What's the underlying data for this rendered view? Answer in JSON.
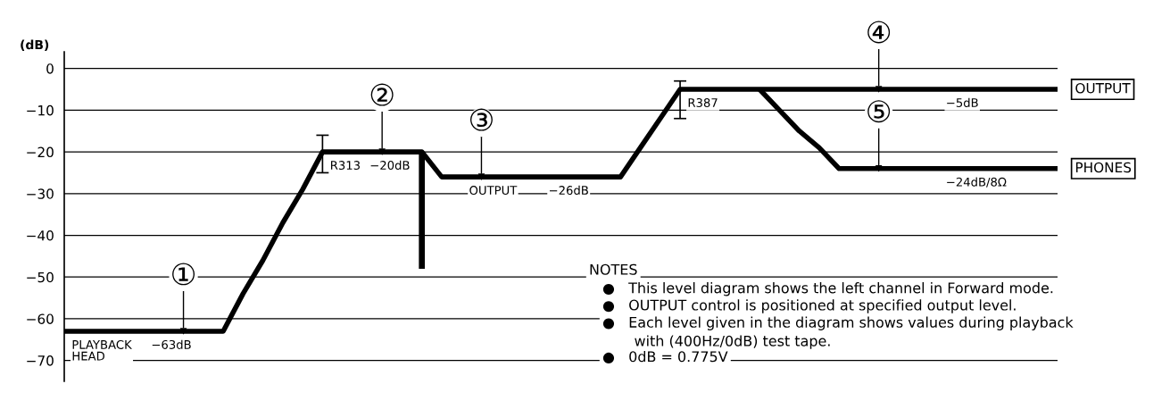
{
  "chart_data": {
    "type": "line",
    "ylabel": "(dB)",
    "ylim": [
      -75,
      4
    ],
    "yticks": [
      0,
      -10,
      -20,
      -30,
      -40,
      -50,
      -60,
      -70
    ],
    "tick_labels": "y",
    "grid": "y",
    "legend": false,
    "marker": "none",
    "line_style": "solid",
    "categories": [
      null,
      null,
      null,
      null,
      null,
      null,
      null,
      null,
      null,
      null,
      null,
      null,
      null,
      null,
      null,
      null,
      null,
      null,
      null,
      null,
      null,
      null,
      null,
      null,
      null,
      null,
      null,
      null,
      null,
      null,
      null,
      null,
      null,
      null,
      null,
      null,
      null,
      null,
      null,
      null,
      null,
      null,
      null,
      null,
      null,
      null,
      null,
      null,
      null,
      null,
      null
    ],
    "series": [
      {
        "name": "OUTPUT",
        "color": "#000000",
        "values": [
          -63,
          -63,
          -63,
          -63,
          -63,
          -63,
          -63,
          -63,
          -63,
          -54,
          -46,
          -37,
          -29,
          -20,
          -20,
          -20,
          -20,
          -20,
          -20,
          -26,
          -26,
          -26,
          -26,
          -26,
          -26,
          -26,
          -26,
          -26,
          -26,
          -19,
          -12,
          -5,
          -5,
          -5,
          -5,
          -5,
          -5,
          -5,
          -5,
          -5,
          -5,
          -5,
          -5,
          -5,
          -5,
          -5,
          -5,
          -5,
          -5,
          -5,
          -5
        ],
        "errors": [
          null,
          null,
          null,
          null,
          null,
          null,
          null,
          null,
          null,
          null,
          null,
          null,
          null,
          [
            -25,
            -16
          ],
          null,
          null,
          null,
          null,
          null,
          null,
          null,
          null,
          null,
          null,
          null,
          null,
          null,
          null,
          null,
          null,
          null,
          [
            -12,
            -3
          ],
          null,
          null,
          null,
          null,
          null,
          null,
          null,
          null,
          null,
          null,
          null,
          null,
          null,
          null,
          null,
          null,
          null,
          null,
          null
        ],
        "value_labels": [
          "PLAYBACK\nHEAD",
          null,
          null,
          null,
          "−63dB",
          null,
          null,
          null,
          null,
          null,
          null,
          null,
          null,
          "R313",
          null,
          "−20dB",
          null,
          null,
          null,
          null,
          "OUTPUT",
          null,
          null,
          null,
          "−26dB",
          null,
          null,
          null,
          null,
          null,
          null,
          "R387",
          null,
          null,
          null,
          null,
          null,
          null,
          null,
          null,
          null,
          null,
          null,
          null,
          "−5dB",
          null,
          null,
          null,
          null,
          null,
          null
        ]
      },
      {
        "name": "PHONES",
        "color": "#000000",
        "values": [
          null,
          null,
          null,
          null,
          null,
          null,
          null,
          null,
          null,
          null,
          null,
          null,
          null,
          null,
          null,
          null,
          null,
          null,
          null,
          null,
          null,
          null,
          null,
          null,
          null,
          null,
          null,
          null,
          null,
          null,
          null,
          null,
          null,
          null,
          null,
          -5,
          -10,
          -15,
          -19,
          -24,
          -24,
          -24,
          -24,
          -24,
          -24,
          -24,
          -24,
          -24,
          -24,
          -24,
          -24
        ],
        "value_labels": [
          null,
          null,
          null,
          null,
          null,
          null,
          null,
          null,
          null,
          null,
          null,
          null,
          null,
          null,
          null,
          null,
          null,
          null,
          null,
          null,
          null,
          null,
          null,
          null,
          null,
          null,
          null,
          null,
          null,
          null,
          null,
          null,
          null,
          null,
          null,
          null,
          null,
          null,
          null,
          null,
          null,
          null,
          null,
          null,
          "−24dB/8Ω",
          null,
          null,
          null,
          null,
          null,
          null
        ]
      },
      {
        "type": "scatter",
        "marker": "triangle",
        "color": "#000000",
        "values": [
          null,
          null,
          null,
          null,
          null,
          null,
          -63,
          null,
          null,
          null,
          null,
          null,
          null,
          null,
          null,
          null,
          -20,
          null,
          null,
          null,
          null,
          -26,
          null,
          null,
          null,
          null,
          null,
          null,
          null,
          null,
          null,
          null,
          null,
          null,
          null,
          null,
          null,
          null,
          null,
          null,
          null,
          -5,
          null,
          null,
          null,
          null,
          null,
          null,
          null,
          null,
          null
        ],
        "value_labels": [
          null,
          null,
          null,
          null,
          null,
          null,
          "①",
          null,
          null,
          null,
          null,
          null,
          null,
          null,
          null,
          null,
          "②",
          null,
          null,
          null,
          null,
          "③",
          null,
          null,
          null,
          null,
          null,
          null,
          null,
          null,
          null,
          null,
          null,
          null,
          null,
          null,
          null,
          null,
          null,
          null,
          null,
          "④",
          null,
          null,
          null,
          null,
          null,
          null,
          null,
          null,
          null
        ]
      },
      {
        "type": "scatter",
        "marker": "triangle",
        "color": "#000000",
        "values": [
          null,
          null,
          null,
          null,
          null,
          null,
          null,
          null,
          null,
          null,
          null,
          null,
          null,
          null,
          null,
          null,
          null,
          null,
          null,
          null,
          null,
          null,
          null,
          null,
          null,
          null,
          null,
          null,
          null,
          null,
          null,
          null,
          null,
          null,
          null,
          null,
          null,
          null,
          null,
          null,
          null,
          -24,
          null,
          null,
          null,
          null,
          null,
          null,
          null,
          null,
          null
        ],
        "value_labels": [
          null,
          null,
          null,
          null,
          null,
          null,
          null,
          null,
          null,
          null,
          null,
          null,
          null,
          null,
          null,
          null,
          null,
          null,
          null,
          null,
          null,
          null,
          null,
          null,
          null,
          null,
          null,
          null,
          null,
          null,
          null,
          null,
          null,
          null,
          null,
          null,
          null,
          null,
          null,
          null,
          null,
          "⑤",
          null,
          null,
          null,
          null,
          null,
          null,
          null,
          null,
          null
        ]
      },
      {
        "type": "bar",
        "color": "#000000",
        "values": [
          null,
          null,
          null,
          null,
          null,
          null,
          null,
          null,
          null,
          null,
          null,
          null,
          null,
          null,
          null,
          null,
          null,
          null,
          -28,
          null,
          null,
          null,
          null,
          null,
          null,
          null,
          null,
          null,
          null,
          null,
          null,
          null,
          null,
          null,
          null,
          null,
          null,
          null,
          null,
          null,
          null,
          null,
          null,
          null,
          null,
          null,
          null,
          null,
          null,
          null,
          null
        ],
        "base": [
          null,
          null,
          null,
          null,
          null,
          null,
          null,
          null,
          null,
          null,
          null,
          null,
          null,
          null,
          null,
          null,
          null,
          null,
          -20,
          null,
          null,
          null,
          null,
          null,
          null,
          null,
          null,
          null,
          null,
          null,
          null,
          null,
          null,
          null,
          null,
          null,
          null,
          null,
          null,
          null,
          null,
          null,
          null,
          null,
          null,
          null,
          null,
          null,
          null,
          null,
          null
        ]
      }
    ],
    "annotations": [
      "NOTES",
      "●   This level diagram shows the left channel in Forward mode.",
      "●   OUTPUT control is positioned at specified output level.",
      "●   Each level given in the diagram shows values during playback\n       with (400Hz/0dB) test tape.",
      "●   0dB = 0.775V"
    ]
  }
}
